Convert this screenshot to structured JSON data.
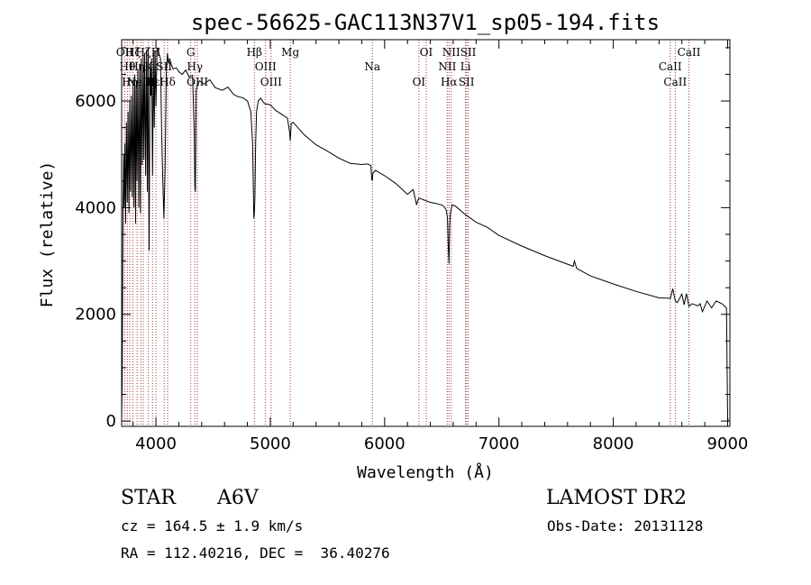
{
  "chart_data": {
    "type": "line",
    "title": "spec-56625-GAC113N37V1_sp05-194.fits",
    "xlabel": "Wavelength (Å)",
    "ylabel": "Flux (relative)",
    "xlim": [
      3700,
      9020
    ],
    "ylim": [
      -100,
      7150
    ],
    "xticks": [
      4000,
      5000,
      6000,
      7000,
      8000,
      9000
    ],
    "yticks": [
      0,
      2000,
      4000,
      6000
    ],
    "xtick_labels": [
      "4000",
      "5000",
      "6000",
      "7000",
      "8000",
      "9000"
    ],
    "ytick_labels": [
      "0",
      "2000",
      "4000",
      "6000"
    ],
    "series": [
      {
        "x": [
          3700,
          3705,
          3712,
          3718,
          3722,
          3728,
          3735,
          3742,
          3750,
          3756,
          3764,
          3770,
          3777,
          3785,
          3792,
          3800,
          3808,
          3815,
          3822,
          3828,
          3835,
          3842,
          3850,
          3858,
          3865,
          3872,
          3880,
          3888,
          3895,
          3902,
          3910,
          3918,
          3925,
          3932,
          3940,
          3948,
          3955,
          3962,
          3970,
          3978,
          3985,
          3992,
          4000,
          4010,
          4020,
          4030,
          4040,
          4050,
          4060,
          4070,
          4080,
          4090,
          4100,
          4110,
          4120,
          4130,
          4150,
          4180,
          4200,
          4230,
          4260,
          4290,
          4320,
          4335,
          4340,
          4345,
          4352,
          4365,
          4380,
          4420,
          4470,
          4520,
          4580,
          4630,
          4680,
          4720,
          4760,
          4800,
          4830,
          4845,
          4852,
          4856,
          4861,
          4866,
          4872,
          4880,
          4895,
          4915,
          4950,
          5000,
          5050,
          5100,
          5150,
          5170,
          5175,
          5183,
          5200,
          5300,
          5400,
          5500,
          5600,
          5700,
          5800,
          5850,
          5880,
          5888,
          5893,
          5898,
          5920,
          6000,
          6100,
          6200,
          6250,
          6270,
          6280,
          6290,
          6300,
          6400,
          6450,
          6500,
          6520,
          6540,
          6550,
          6556,
          6563,
          6570,
          6576,
          6590,
          6620,
          6700,
          6800,
          6900,
          7000,
          7200,
          7400,
          7600,
          7650,
          7660,
          7680,
          7800,
          8000,
          8200,
          8400,
          8500,
          8520,
          8542,
          8560,
          8600,
          8620,
          8640,
          8662,
          8690,
          8740,
          8760,
          8780,
          8820,
          8860,
          8900,
          8950,
          8990,
          9000,
          9005
        ],
        "y": [
          50,
          800,
          3900,
          5000,
          4000,
          5200,
          3700,
          5600,
          4100,
          5800,
          3900,
          6000,
          4300,
          6100,
          4200,
          6300,
          4000,
          6500,
          3700,
          6300,
          4500,
          6600,
          4000,
          6700,
          3900,
          6800,
          4800,
          6850,
          4900,
          6900,
          4600,
          6950,
          4300,
          7000,
          3200,
          6700,
          6100,
          6800,
          4600,
          6900,
          5500,
          6950,
          5900,
          7000,
          6950,
          6850,
          6800,
          5400,
          4500,
          3800,
          4700,
          6500,
          6900,
          6700,
          6800,
          6700,
          6600,
          6620,
          6550,
          6500,
          6580,
          6450,
          6480,
          5400,
          4400,
          4300,
          6200,
          6300,
          6380,
          6320,
          6400,
          6250,
          6200,
          6260,
          6120,
          6080,
          6060,
          6000,
          5800,
          5200,
          4300,
          3800,
          3900,
          4200,
          5200,
          5800,
          6000,
          6050,
          5950,
          5930,
          5820,
          5750,
          5680,
          5400,
          5250,
          5580,
          5600,
          5360,
          5180,
          5060,
          4930,
          4830,
          4810,
          4820,
          4790,
          4520,
          4520,
          4650,
          4700,
          4600,
          4450,
          4250,
          4340,
          4150,
          4050,
          4130,
          4180,
          4100,
          4080,
          4050,
          4020,
          3950,
          3800,
          3300,
          2950,
          3700,
          3900,
          4050,
          4030,
          3880,
          3730,
          3630,
          3480,
          3280,
          3100,
          2940,
          2900,
          3000,
          2860,
          2720,
          2570,
          2430,
          2310,
          2300,
          2480,
          2250,
          2220,
          2380,
          2180,
          2390,
          2150,
          2200,
          2160,
          2200,
          2050,
          2250,
          2120,
          2250,
          2200,
          2120,
          60,
          0
        ]
      }
    ],
    "lines": [
      {
        "x": 3727,
        "label": "OII"
      },
      {
        "x": 3750,
        "label": "Hθ"
      },
      {
        "x": 3771,
        "label": "Hη"
      },
      {
        "x": 3798,
        "label": "Hζ"
      },
      {
        "x": 3835,
        "label": "Hη"
      },
      {
        "x": 3869,
        "label": "NeIII"
      },
      {
        "x": 3889,
        "label": "Hζ"
      },
      {
        "x": 3934,
        "label": "K"
      },
      {
        "x": 3970,
        "label": "Hε"
      },
      {
        "x": 4000,
        "label": "H"
      },
      {
        "x": 4072,
        "label": "SII"
      },
      {
        "x": 4102,
        "label": "Hδ"
      },
      {
        "x": 4304,
        "label": "G"
      },
      {
        "x": 4340,
        "label": "Hγ"
      },
      {
        "x": 4363,
        "label": "OIII"
      },
      {
        "x": 4861,
        "label": "Hβ"
      },
      {
        "x": 4959,
        "label": "OIII"
      },
      {
        "x": 5007,
        "label": "OIII"
      },
      {
        "x": 5175,
        "label": "Mg"
      },
      {
        "x": 5893,
        "label": "Na"
      },
      {
        "x": 6300,
        "label": "OI"
      },
      {
        "x": 6364,
        "label": "OI"
      },
      {
        "x": 6548,
        "label": "NII"
      },
      {
        "x": 6563,
        "label": "Hα"
      },
      {
        "x": 6583,
        "label": "NII"
      },
      {
        "x": 6708,
        "label": "Li"
      },
      {
        "x": 6716,
        "label": "SII"
      },
      {
        "x": 6731,
        "label": "SII"
      },
      {
        "x": 8498,
        "label": "CaII"
      },
      {
        "x": 8542,
        "label": "CaII"
      },
      {
        "x": 8662,
        "label": "CaII"
      }
    ],
    "line_color": "#a33535",
    "grid": false
  },
  "info": {
    "class": "STAR",
    "subclass": "A6V",
    "survey": "LAMOST DR2",
    "cz": "cz = 164.5 ± 1.9 km/s",
    "obs_date": "Obs-Date: 20131128",
    "coords": "RA = 112.40216, DEC =  36.40276"
  }
}
